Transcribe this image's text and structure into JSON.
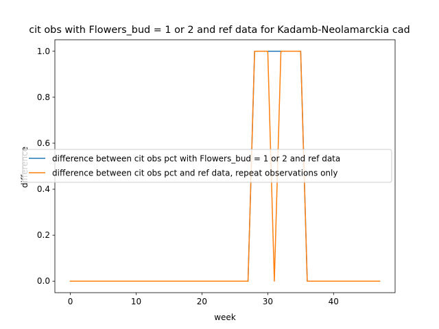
{
  "chart_data": {
    "type": "line",
    "title": "cit obs with Flowers_bud = 1 or 2 and ref data for Kadamb-Neolamarckia cad",
    "xlabel": "week",
    "ylabel": "difference",
    "xlim": [
      -2.35,
      49.35
    ],
    "ylim": [
      -0.05,
      1.05
    ],
    "xticks": [
      0,
      10,
      20,
      30,
      40
    ],
    "yticks": [
      0.0,
      0.2,
      0.4,
      0.6,
      0.8,
      1.0
    ],
    "xtick_labels": [
      "0",
      "10",
      "20",
      "30",
      "40"
    ],
    "ytick_labels": [
      "0.0",
      "0.2",
      "0.4",
      "0.6",
      "0.8",
      "1.0"
    ],
    "grid": false,
    "legend_position": "center",
    "x": [
      0,
      1,
      2,
      3,
      4,
      5,
      6,
      7,
      8,
      9,
      10,
      11,
      12,
      13,
      14,
      15,
      16,
      17,
      18,
      19,
      20,
      21,
      22,
      23,
      24,
      25,
      26,
      27,
      28,
      29,
      30,
      31,
      32,
      33,
      34,
      35,
      36,
      37,
      38,
      39,
      40,
      41,
      42,
      43,
      44,
      45,
      46,
      47
    ],
    "series": [
      {
        "name": "difference between cit obs pct with Flowers_bud = 1 or 2 and ref data",
        "color": "#1f77b4",
        "values": [
          0,
          0,
          0,
          0,
          0,
          0,
          0,
          0,
          0,
          0,
          0,
          0,
          0,
          0,
          0,
          0,
          0,
          0,
          0,
          0,
          0,
          0,
          0,
          0,
          0,
          0,
          0,
          0,
          1,
          1,
          1,
          1,
          1,
          1,
          1,
          1,
          0,
          0,
          0,
          0,
          0,
          0,
          0,
          0,
          0,
          0,
          0,
          0
        ]
      },
      {
        "name": "difference between cit obs pct and ref data, repeat observations only",
        "color": "#ff7f0e",
        "values": [
          0,
          0,
          0,
          0,
          0,
          0,
          0,
          0,
          0,
          0,
          0,
          0,
          0,
          0,
          0,
          0,
          0,
          0,
          0,
          0,
          0,
          0,
          0,
          0,
          0,
          0,
          0,
          0,
          1,
          1,
          1,
          0,
          1,
          1,
          1,
          1,
          0,
          0,
          0,
          0,
          0,
          0,
          0,
          0,
          0,
          0,
          0,
          0
        ]
      }
    ]
  }
}
